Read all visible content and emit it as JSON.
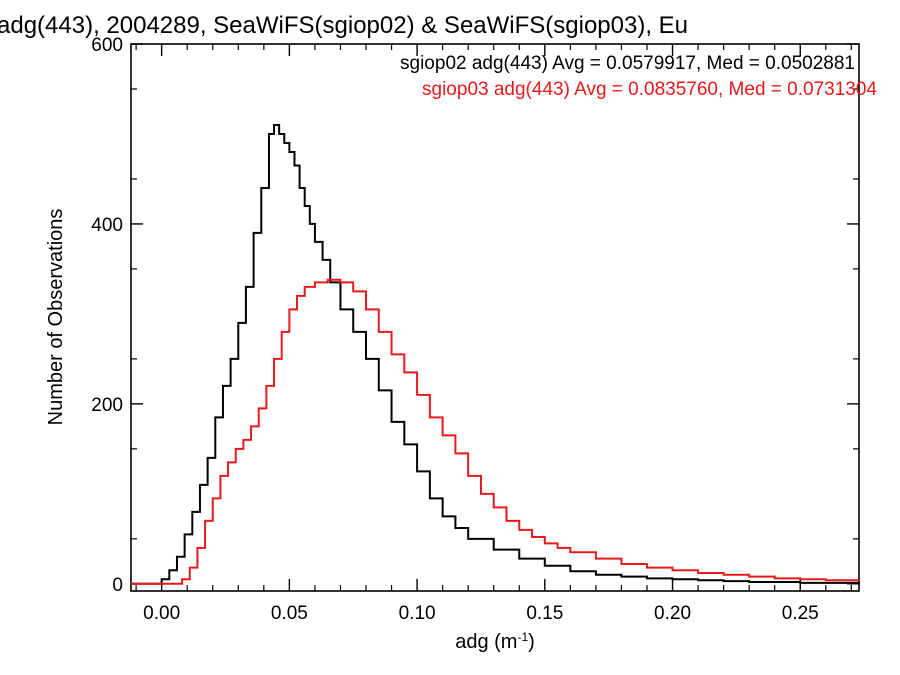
{
  "chart_data": {
    "type": "line",
    "subtype": "histogram-step",
    "title": "adg(443), 2004289, SeaWiFS(sgiop02) & SeaWiFS(sgiop03), Eu",
    "xlabel_base": "adg (m",
    "xlabel_sup": "-1",
    "xlabel_end": ")",
    "ylabel": "Number of Observations",
    "xlim": [
      -0.012,
      0.273
    ],
    "ylim": [
      -8,
      600
    ],
    "xticks": [
      0.0,
      0.05,
      0.1,
      0.15,
      0.2,
      0.25
    ],
    "xtick_labels": [
      "0.00",
      "0.05",
      "0.10",
      "0.15",
      "0.20",
      "0.25"
    ],
    "yticks": [
      0,
      200,
      400,
      600
    ],
    "ytick_labels": [
      "0",
      "200",
      "400",
      "600"
    ],
    "grid": false,
    "legend_position": "top-right",
    "series": [
      {
        "label": "sgiop02 adg(443) Avg = 0.0579917, Med = 0.0502881",
        "color": "#000000",
        "points": [
          [
            -0.012,
            0
          ],
          [
            0.0,
            5
          ],
          [
            0.003,
            15
          ],
          [
            0.006,
            30
          ],
          [
            0.009,
            55
          ],
          [
            0.012,
            80
          ],
          [
            0.015,
            110
          ],
          [
            0.018,
            140
          ],
          [
            0.021,
            185
          ],
          [
            0.024,
            220
          ],
          [
            0.027,
            250
          ],
          [
            0.03,
            290
          ],
          [
            0.033,
            330
          ],
          [
            0.036,
            390
          ],
          [
            0.039,
            440
          ],
          [
            0.042,
            500
          ],
          [
            0.044,
            510
          ],
          [
            0.046,
            500
          ],
          [
            0.048,
            490
          ],
          [
            0.05,
            480
          ],
          [
            0.052,
            465
          ],
          [
            0.054,
            440
          ],
          [
            0.056,
            420
          ],
          [
            0.058,
            400
          ],
          [
            0.06,
            380
          ],
          [
            0.063,
            360
          ],
          [
            0.066,
            335
          ],
          [
            0.07,
            305
          ],
          [
            0.075,
            280
          ],
          [
            0.08,
            250
          ],
          [
            0.085,
            215
          ],
          [
            0.09,
            180
          ],
          [
            0.095,
            155
          ],
          [
            0.1,
            125
          ],
          [
            0.105,
            95
          ],
          [
            0.11,
            75
          ],
          [
            0.115,
            62
          ],
          [
            0.12,
            50
          ],
          [
            0.13,
            38
          ],
          [
            0.14,
            28
          ],
          [
            0.15,
            20
          ],
          [
            0.16,
            14
          ],
          [
            0.17,
            10
          ],
          [
            0.18,
            8
          ],
          [
            0.19,
            6
          ],
          [
            0.2,
            5
          ],
          [
            0.21,
            4
          ],
          [
            0.22,
            3
          ],
          [
            0.23,
            2
          ],
          [
            0.24,
            2
          ],
          [
            0.25,
            1
          ],
          [
            0.26,
            1
          ],
          [
            0.273,
            0
          ]
        ]
      },
      {
        "label": "sgiop03 adg(443) Avg = 0.0835760, Med = 0.0731304",
        "color": "#e8191b",
        "points": [
          [
            -0.012,
            0
          ],
          [
            0.005,
            0
          ],
          [
            0.008,
            5
          ],
          [
            0.011,
            18
          ],
          [
            0.014,
            40
          ],
          [
            0.017,
            70
          ],
          [
            0.02,
            95
          ],
          [
            0.023,
            120
          ],
          [
            0.026,
            135
          ],
          [
            0.029,
            150
          ],
          [
            0.032,
            160
          ],
          [
            0.035,
            175
          ],
          [
            0.038,
            195
          ],
          [
            0.041,
            220
          ],
          [
            0.044,
            250
          ],
          [
            0.047,
            280
          ],
          [
            0.05,
            305
          ],
          [
            0.053,
            320
          ],
          [
            0.056,
            330
          ],
          [
            0.06,
            335
          ],
          [
            0.065,
            338
          ],
          [
            0.07,
            335
          ],
          [
            0.075,
            325
          ],
          [
            0.08,
            305
          ],
          [
            0.085,
            280
          ],
          [
            0.09,
            255
          ],
          [
            0.095,
            235
          ],
          [
            0.1,
            210
          ],
          [
            0.105,
            185
          ],
          [
            0.11,
            165
          ],
          [
            0.115,
            145
          ],
          [
            0.12,
            120
          ],
          [
            0.125,
            100
          ],
          [
            0.13,
            85
          ],
          [
            0.135,
            70
          ],
          [
            0.14,
            60
          ],
          [
            0.145,
            52
          ],
          [
            0.15,
            45
          ],
          [
            0.155,
            40
          ],
          [
            0.16,
            35
          ],
          [
            0.17,
            28
          ],
          [
            0.18,
            22
          ],
          [
            0.19,
            18
          ],
          [
            0.2,
            15
          ],
          [
            0.21,
            12
          ],
          [
            0.22,
            10
          ],
          [
            0.23,
            8
          ],
          [
            0.24,
            6
          ],
          [
            0.25,
            5
          ],
          [
            0.26,
            4
          ],
          [
            0.273,
            3
          ]
        ]
      }
    ]
  }
}
